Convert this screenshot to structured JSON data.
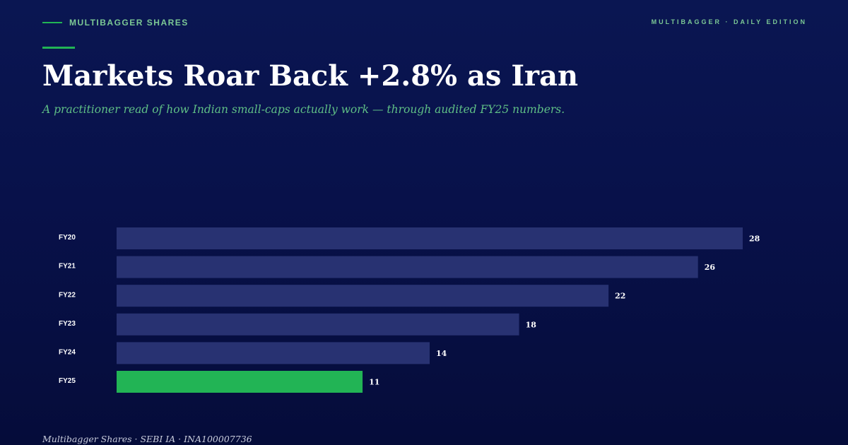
{
  "header": {
    "kicker": "MULTIBAGGER SHARES",
    "edition": "MULTIBAGGER · DAILY EDITION"
  },
  "headline": "Markets Roar Back +2.8% as Iran",
  "subtitle": "A practitioner read of how Indian small-caps actually work — through audited FY25 numbers.",
  "footer": "Multibagger Shares · SEBI IA · INA100007736",
  "colors": {
    "background": "#08114a",
    "bar": "#283272",
    "highlight_bar": "#22b455",
    "accent": "#22b455",
    "kicker_text": "#7cc995"
  },
  "chart_data": {
    "type": "bar",
    "orientation": "horizontal",
    "categories": [
      "FY20",
      "FY21",
      "FY22",
      "FY23",
      "FY24",
      "FY25"
    ],
    "values": [
      28,
      26,
      22,
      18,
      14,
      11
    ],
    "highlight_category": "FY25",
    "title": "",
    "xlabel": "",
    "ylabel": "",
    "xlim": [
      0,
      28
    ],
    "grid": false,
    "legend": "none",
    "data_labels": true
  }
}
